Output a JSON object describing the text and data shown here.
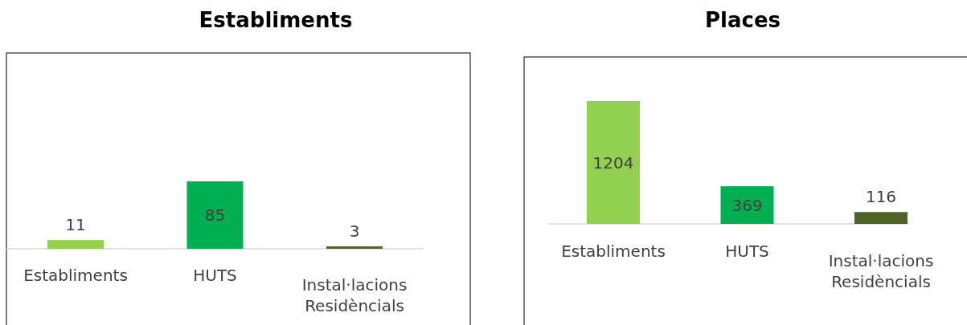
{
  "chart_data": [
    {
      "type": "bar",
      "title": "Establiments",
      "categories": [
        "Establiments",
        "HUTS",
        "Instal·lacions Residèncials"
      ],
      "values": [
        11,
        85,
        3
      ],
      "colors": [
        "#92d050",
        "#00b050",
        "#4f6228"
      ],
      "data_labels": true
    },
    {
      "type": "bar",
      "title": "Places",
      "categories": [
        "Establiments",
        "HUTS",
        "Instal·lacions Residèncials"
      ],
      "values": [
        1204,
        369,
        116
      ],
      "colors": [
        "#92d050",
        "#00b050",
        "#4f6228"
      ],
      "data_labels": true
    }
  ]
}
